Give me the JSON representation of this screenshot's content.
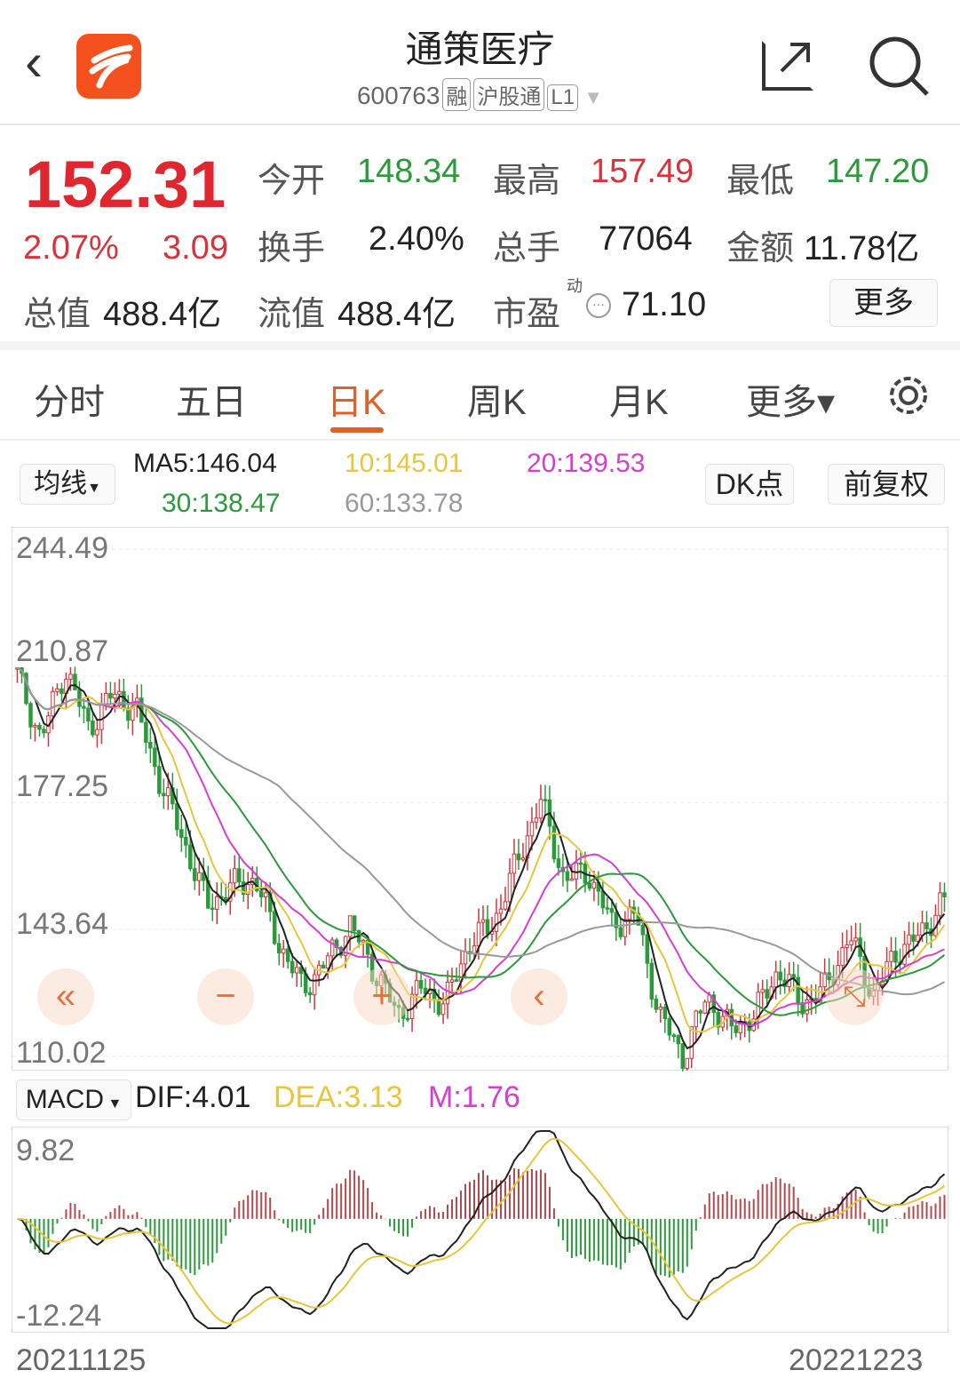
{
  "header": {
    "title": "通策医疗",
    "code": "600763",
    "tags": [
      "融",
      "沪股通",
      "L1"
    ]
  },
  "quote": {
    "price": "152.31",
    "change_pct": "2.07%",
    "change": "3.09",
    "open_label": "今开",
    "open": "148.34",
    "high_label": "最高",
    "high": "157.49",
    "low_label": "最低",
    "low": "147.20",
    "turnover_label": "换手",
    "turnover": "2.40%",
    "volume_label": "总手",
    "volume": "77064",
    "amount_label": "金额",
    "amount": "11.78亿",
    "mktcap_label": "总值",
    "mktcap": "488.4亿",
    "float_label": "流值",
    "float": "488.4亿",
    "pe_label": "市盈",
    "pe_sup": "动",
    "pe": "71.10",
    "more": "更多"
  },
  "tabs": [
    {
      "label": "分时"
    },
    {
      "label": "五日"
    },
    {
      "label": "日K",
      "active": true
    },
    {
      "label": "周K"
    },
    {
      "label": "月K"
    },
    {
      "label": "更多▾"
    }
  ],
  "ma_bar": {
    "selector": "均线",
    "ma5": "MA5:146.04",
    "ma10": "10:145.01",
    "ma20": "20:139.53",
    "ma30": "30:138.47",
    "ma60": "60:133.78",
    "dk": "DK点",
    "adjust": "前复权"
  },
  "colors": {
    "up": "#d6333b",
    "down": "#2a9a3a",
    "ma5": "#222222",
    "ma10": "#e8c53a",
    "ma20": "#d43fd0",
    "ma30": "#2a9a3a",
    "ma60": "#999999",
    "accent": "#e0602a"
  },
  "macd_bar": {
    "selector": "MACD",
    "dif": "DIF:4.01",
    "dea": "DEA:3.13",
    "m": "M:1.76"
  },
  "chart_data": {
    "type": "candlestick",
    "price_axis_labels": [
      "244.49",
      "210.87",
      "177.25",
      "143.64",
      "110.02"
    ],
    "ylim": [
      110.02,
      244.49
    ],
    "macd_axis_labels": [
      "9.82",
      "-12.24"
    ],
    "macd_ylim": [
      -12.24,
      9.82
    ],
    "start_date": "20211125",
    "end_date": "20221223",
    "approx_close_path": [
      211,
      194,
      213,
      197,
      206,
      202,
      183,
      167,
      150,
      155,
      157,
      140,
      128,
      135,
      145,
      133,
      121,
      128,
      124,
      140,
      145,
      161,
      178,
      157,
      159,
      145,
      148,
      121,
      110,
      126,
      117,
      121,
      133,
      124,
      128,
      142,
      126,
      138,
      142,
      152.31
    ]
  },
  "overlay_icons": [
    "double-left-icon",
    "zoom-out-icon",
    "zoom-in-icon",
    "left-icon",
    "expand-icon"
  ]
}
